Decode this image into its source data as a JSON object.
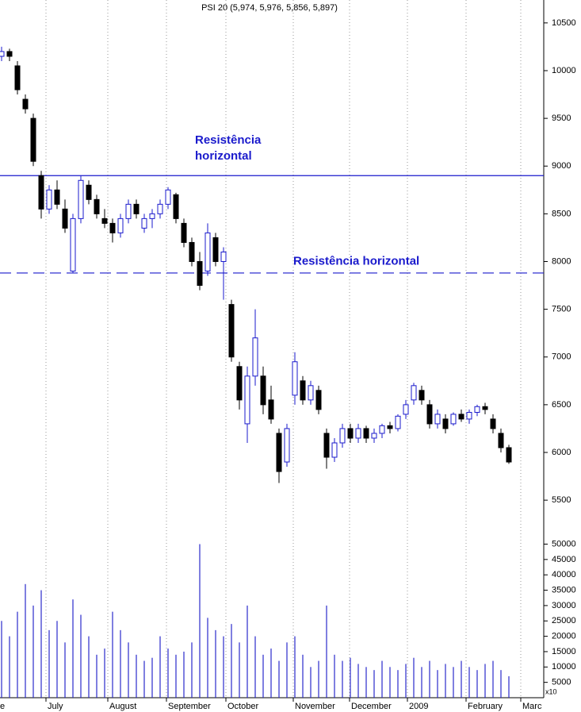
{
  "chart_data": [
    {
      "type": "candlestick",
      "title": "PSI 20 (5,974, 5,976, 5,856, 5,897)",
      "x": [
        0,
        2,
        4,
        6,
        8,
        10,
        12,
        14,
        16,
        18,
        20,
        22,
        24,
        26,
        28,
        30,
        32,
        34,
        36,
        38,
        40,
        42,
        44,
        46,
        48,
        50,
        52,
        54,
        56,
        58,
        60,
        62,
        64,
        66,
        68,
        70,
        72,
        74,
        76,
        78,
        80,
        82,
        84,
        86,
        88,
        90,
        92,
        94,
        96,
        98,
        100,
        102,
        104,
        106,
        108,
        110,
        112,
        114,
        116,
        118,
        120,
        122,
        124,
        126,
        128
      ],
      "open": [
        10150,
        10200,
        10050,
        9700,
        9500,
        8900,
        8550,
        8750,
        8550,
        7900,
        8450,
        8800,
        8650,
        8450,
        8400,
        8300,
        8450,
        8600,
        8350,
        8450,
        8500,
        8600,
        8700,
        8400,
        8200,
        8000,
        7900,
        8250,
        8000,
        7550,
        6900,
        6300,
        6800,
        6800,
        6550,
        6200,
        5900,
        6600,
        6750,
        6550,
        6650,
        6200,
        5950,
        6100,
        6250,
        6150,
        6250,
        6150,
        6200,
        6280,
        6250,
        6400,
        6550,
        6650,
        6500,
        6300,
        6350,
        6300,
        6400,
        6350,
        6420,
        6480,
        6350,
        6200,
        6050
      ],
      "high": [
        10250,
        10230,
        10100,
        9750,
        9550,
        8950,
        8800,
        8850,
        8650,
        8500,
        8900,
        8850,
        8700,
        8550,
        8450,
        8500,
        8650,
        8650,
        8500,
        8550,
        8650,
        8780,
        8720,
        8450,
        8250,
        8100,
        8400,
        8300,
        8150,
        7600,
        6950,
        6900,
        7500,
        6900,
        6700,
        6250,
        6300,
        7050,
        6800,
        6750,
        6700,
        6250,
        6150,
        6300,
        6300,
        6300,
        6280,
        6250,
        6300,
        6320,
        6400,
        6550,
        6730,
        6700,
        6550,
        6450,
        6400,
        6420,
        6450,
        6450,
        6500,
        6520,
        6400,
        6250,
        6080
      ],
      "low": [
        10100,
        10100,
        9750,
        9550,
        9000,
        8450,
        8500,
        8550,
        8300,
        7880,
        8400,
        8600,
        8450,
        8350,
        8200,
        8250,
        8400,
        8450,
        8300,
        8350,
        8450,
        8550,
        8400,
        8150,
        7950,
        7700,
        7850,
        7950,
        7600,
        6950,
        6450,
        6100,
        6700,
        6400,
        6300,
        5680,
        5850,
        6500,
        6500,
        6500,
        6400,
        5830,
        5900,
        6050,
        6100,
        6100,
        6100,
        6100,
        6150,
        6200,
        6220,
        6350,
        6500,
        6500,
        6250,
        6250,
        6200,
        6280,
        6320,
        6300,
        6380,
        6400,
        6200,
        6000,
        5880
      ],
      "close": [
        10200,
        10150,
        9800,
        9600,
        9050,
        8550,
        8750,
        8600,
        8350,
        8450,
        8850,
        8650,
        8500,
        8400,
        8300,
        8450,
        8600,
        8500,
        8450,
        8500,
        8600,
        8750,
        8450,
        8200,
        8000,
        7750,
        8300,
        8000,
        8100,
        7000,
        6550,
        6800,
        7200,
        6500,
        6350,
        5800,
        6250,
        6950,
        6550,
        6700,
        6450,
        5950,
        6100,
        6250,
        6150,
        6250,
        6150,
        6200,
        6280,
        6250,
        6380,
        6500,
        6700,
        6550,
        6300,
        6400,
        6250,
        6400,
        6350,
        6420,
        6480,
        6450,
        6250,
        6050,
        5900
      ],
      "up_color": "#1a1acc",
      "down_color": "#000000",
      "xlim": [
        -0.4,
        136.8
      ],
      "ylim": [
        5210,
        10740
      ],
      "yticks": [
        5500,
        6000,
        6500,
        7000,
        7500,
        8000,
        8500,
        9000,
        9500,
        10000,
        10500
      ],
      "hlines": [
        {
          "value": 8900,
          "style": "solid",
          "color": "#1a1acc"
        },
        {
          "value": 7880,
          "style": "dashed",
          "color": "#1a1acc"
        }
      ],
      "annotations": [
        {
          "lines": [
            "Resistência",
            "horizontal"
          ],
          "value": 9100,
          "x": 48.8
        },
        {
          "lines": [
            "Resistência horizontal"
          ],
          "value": 8000,
          "x": 73.6
        }
      ]
    },
    {
      "type": "bar",
      "x": [
        0,
        2,
        4,
        6,
        8,
        10,
        12,
        14,
        16,
        18,
        20,
        22,
        24,
        26,
        28,
        30,
        32,
        34,
        36,
        38,
        40,
        42,
        44,
        46,
        48,
        50,
        52,
        54,
        56,
        58,
        60,
        62,
        64,
        66,
        68,
        70,
        72,
        74,
        76,
        78,
        80,
        82,
        84,
        86,
        88,
        90,
        92,
        94,
        96,
        98,
        100,
        102,
        104,
        106,
        108,
        110,
        112,
        114,
        116,
        118,
        120,
        122,
        124,
        126,
        128
      ],
      "values": [
        25000,
        20000,
        28000,
        37000,
        30000,
        35000,
        22000,
        25000,
        18000,
        32000,
        27000,
        20000,
        14000,
        16000,
        28000,
        22000,
        18000,
        14000,
        12000,
        13000,
        20000,
        16000,
        14000,
        15000,
        18000,
        50000,
        26000,
        22000,
        20000,
        24000,
        18000,
        30000,
        20000,
        14000,
        16000,
        12000,
        18000,
        20000,
        14000,
        10000,
        12000,
        30000,
        14000,
        12000,
        13000,
        11000,
        10000,
        9000,
        12000,
        10000,
        9000,
        11000,
        13000,
        10000,
        12000,
        9000,
        11000,
        10000,
        12000,
        10000,
        9000,
        11000,
        12000,
        9000,
        7000
      ],
      "color": "#2a2acc",
      "unit_label": "x10",
      "xlim": [
        -0.4,
        136.8
      ],
      "ylim": [
        0,
        55300
      ],
      "yticks": [
        5000,
        10000,
        15000,
        20000,
        25000,
        30000,
        35000,
        40000,
        45000,
        50000
      ],
      "xticks": [
        {
          "value": -1,
          "label": "e"
        },
        {
          "value": 11.2,
          "label": "July"
        },
        {
          "value": 26.8,
          "label": "August"
        },
        {
          "value": 41.6,
          "label": "September"
        },
        {
          "value": 56.6,
          "label": "October"
        },
        {
          "value": 73.6,
          "label": "November"
        },
        {
          "value": 87.8,
          "label": "December"
        },
        {
          "value": 102.4,
          "label": "2009"
        },
        {
          "value": 117.2,
          "label": "February"
        },
        {
          "value": 131,
          "label": "Marc"
        }
      ],
      "grid": true
    }
  ]
}
